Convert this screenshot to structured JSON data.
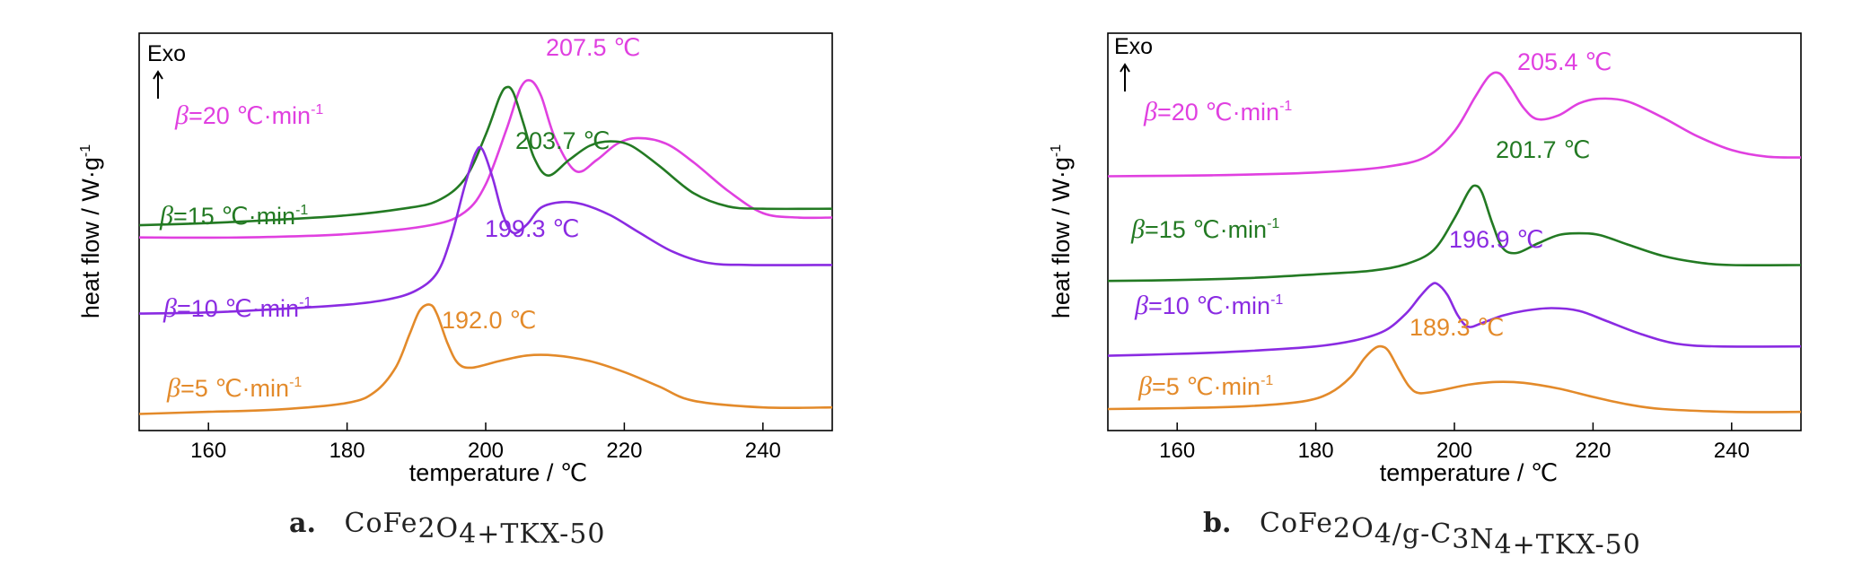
{
  "chart_data": [
    {
      "type": "line",
      "panel": "a",
      "caption_letter": "a.",
      "caption_parts": [
        {
          "t": "CoFe",
          "sub": false
        },
        {
          "t": "2",
          "sub": true
        },
        {
          "t": "O",
          "sub": false
        },
        {
          "t": "4",
          "sub": true
        },
        {
          "t": "+TKX-50",
          "sub": false
        }
      ],
      "xlabel": "temperature / ℃",
      "ylabel": "heat flow / W·g",
      "ylabel_sup": "-1",
      "exo_label": "Exo",
      "xlim": [
        150,
        250
      ],
      "xticks": [
        160,
        180,
        200,
        220,
        240
      ],
      "series": [
        {
          "name": "β=20 ℃·min⁻¹",
          "beta": "β",
          "rate": "=20 ℃·min",
          "sup": "-1",
          "color": "#e040e0",
          "peak_label": "207.5 ℃",
          "peak_x": 207.5,
          "x": [
            150,
            165,
            180,
            192,
            197,
            200,
            203,
            205,
            206.5,
            208,
            210,
            213,
            216,
            219,
            222,
            226,
            230,
            235,
            240,
            245,
            250
          ],
          "y": [
            -0.3,
            -0.3,
            -0.27,
            -0.19,
            -0.07,
            0.18,
            0.68,
            1.05,
            1.12,
            0.98,
            0.6,
            0.3,
            0.4,
            0.55,
            0.6,
            0.55,
            0.38,
            0.12,
            -0.08,
            -0.12,
            -0.12
          ]
        },
        {
          "name": "β=15 ℃·min⁻¹",
          "beta": "β",
          "rate": "=15 ℃·min",
          "sup": "-1",
          "color": "#237a23",
          "peak_label": "203.7 ℃",
          "peak_x": 203.7,
          "x": [
            150,
            160,
            170,
            180,
            188,
            193,
            197,
            200,
            202,
            203,
            204,
            205.5,
            207,
            209,
            212,
            215,
            218,
            221,
            225,
            230,
            235,
            240,
            250
          ],
          "y": [
            -0.19,
            -0.17,
            -0.14,
            -0.1,
            -0.04,
            0.03,
            0.23,
            0.63,
            0.97,
            1.06,
            1.01,
            0.72,
            0.42,
            0.26,
            0.4,
            0.53,
            0.57,
            0.53,
            0.35,
            0.1,
            -0.02,
            -0.04,
            -0.04
          ]
        },
        {
          "name": "β=10 ℃·min⁻¹",
          "beta": "β",
          "rate": "=10 ℃·min",
          "sup": "-1",
          "color": "#8a2be2",
          "peak_label": "199.3 ℃",
          "peak_x": 199.3,
          "x": [
            150,
            160,
            170,
            180,
            186,
            190,
            193,
            195,
            197,
            198.5,
            199.5,
            201,
            202.5,
            204,
            206,
            208,
            211,
            214,
            218,
            222,
            227,
            232,
            238,
            250
          ],
          "y": [
            -0.99,
            -0.98,
            -0.95,
            -0.91,
            -0.86,
            -0.78,
            -0.62,
            -0.3,
            0.17,
            0.46,
            0.5,
            0.24,
            -0.1,
            -0.26,
            -0.18,
            -0.03,
            0.02,
            0.0,
            -0.1,
            -0.25,
            -0.43,
            -0.53,
            -0.55,
            -0.55
          ]
        },
        {
          "name": "β=5 ℃·min⁻¹",
          "beta": "β",
          "rate": "=5 ℃·min",
          "sup": "-1",
          "color": "#e38a2a",
          "peak_label": "192.0 ℃",
          "peak_x": 192.0,
          "x": [
            150,
            160,
            170,
            180,
            184,
            187,
            189,
            190.5,
            192,
            193,
            194.5,
            196,
            198,
            202,
            206,
            210,
            215,
            220,
            225,
            230,
            240,
            250
          ],
          "y": [
            -1.9,
            -1.88,
            -1.86,
            -1.8,
            -1.7,
            -1.48,
            -1.18,
            -0.96,
            -0.91,
            -1.0,
            -1.26,
            -1.44,
            -1.48,
            -1.42,
            -1.37,
            -1.37,
            -1.42,
            -1.52,
            -1.65,
            -1.78,
            -1.84,
            -1.84
          ]
        }
      ]
    },
    {
      "type": "line",
      "panel": "b",
      "caption_letter": "b.",
      "caption_parts": [
        {
          "t": "CoFe",
          "sub": false
        },
        {
          "t": "2",
          "sub": true
        },
        {
          "t": "O",
          "sub": false
        },
        {
          "t": "4",
          "sub": true
        },
        {
          "t": "/g-C",
          "sub": false
        },
        {
          "t": "3",
          "sub": true
        },
        {
          "t": "N",
          "sub": false
        },
        {
          "t": "4",
          "sub": true
        },
        {
          "t": "+TKX-50",
          "sub": false
        }
      ],
      "xlabel": "temperature / ℃",
      "ylabel": "heat flow / W·g",
      "ylabel_sup": "-1",
      "exo_label": "Exo",
      "xlim": [
        150,
        250
      ],
      "xticks": [
        160,
        180,
        200,
        220,
        240
      ],
      "series": [
        {
          "name": "β=20 ℃·min⁻¹",
          "beta": "β",
          "rate": "=20 ℃·min",
          "sup": "-1",
          "color": "#e040e0",
          "peak_label": "205.4 ℃",
          "peak_x": 205.4,
          "x": [
            150,
            165,
            180,
            190,
            196,
            200,
            203,
            205,
            206.5,
            208,
            210,
            212,
            215,
            218,
            221,
            225,
            230,
            235,
            240,
            245,
            250
          ],
          "y": [
            -0.23,
            -0.22,
            -0.19,
            -0.13,
            -0.02,
            0.25,
            0.62,
            0.84,
            0.87,
            0.73,
            0.5,
            0.38,
            0.42,
            0.55,
            0.6,
            0.57,
            0.4,
            0.2,
            0.05,
            -0.02,
            -0.03
          ]
        },
        {
          "name": "β=15 ℃·min⁻¹",
          "beta": "β",
          "rate": "=15 ℃·min",
          "sup": "-1",
          "color": "#237a23",
          "peak_label": "201.7 ℃",
          "peak_x": 201.7,
          "x": [
            150,
            160,
            170,
            180,
            188,
            193,
            197,
            200,
            202,
            203,
            204,
            205.5,
            207,
            209,
            212,
            215,
            218,
            221,
            225,
            230,
            235,
            240,
            250
          ],
          "y": [
            -1.35,
            -1.34,
            -1.32,
            -1.28,
            -1.24,
            -1.17,
            -1.02,
            -0.68,
            -0.4,
            -0.33,
            -0.41,
            -0.74,
            -1.0,
            -1.05,
            -0.95,
            -0.86,
            -0.84,
            -0.86,
            -0.96,
            -1.08,
            -1.15,
            -1.18,
            -1.18
          ]
        },
        {
          "name": "β=10 ℃·min⁻¹",
          "beta": "β",
          "rate": "=10 ℃·min",
          "sup": "-1",
          "color": "#8a2be2",
          "peak_label": "196.9 ℃",
          "peak_x": 196.9,
          "x": [
            150,
            160,
            170,
            180,
            186,
            190,
            193,
            195,
            196.5,
            197.5,
            199,
            200.5,
            202,
            204,
            207,
            210,
            214,
            218,
            222,
            227,
            232,
            238,
            250
          ],
          "y": [
            -2.15,
            -2.13,
            -2.1,
            -2.05,
            -1.98,
            -1.88,
            -1.7,
            -1.52,
            -1.4,
            -1.38,
            -1.5,
            -1.72,
            -1.84,
            -1.8,
            -1.72,
            -1.67,
            -1.64,
            -1.67,
            -1.78,
            -1.92,
            -2.02,
            -2.05,
            -2.05
          ]
        },
        {
          "name": "β=5 ℃·min⁻¹",
          "beta": "β",
          "rate": "=5 ℃·min",
          "sup": "-1",
          "color": "#e38a2a",
          "peak_label": "189.3 ℃",
          "peak_x": 189.3,
          "x": [
            150,
            160,
            170,
            178,
            182,
            185,
            187,
            188.5,
            189.5,
            190.5,
            192,
            193.5,
            195,
            198,
            202,
            206,
            210,
            215,
            220,
            225,
            230,
            240,
            250
          ],
          "y": [
            -2.72,
            -2.71,
            -2.69,
            -2.64,
            -2.55,
            -2.38,
            -2.18,
            -2.07,
            -2.05,
            -2.1,
            -2.3,
            -2.48,
            -2.55,
            -2.52,
            -2.46,
            -2.43,
            -2.44,
            -2.5,
            -2.59,
            -2.67,
            -2.72,
            -2.75,
            -2.75
          ]
        }
      ]
    }
  ]
}
